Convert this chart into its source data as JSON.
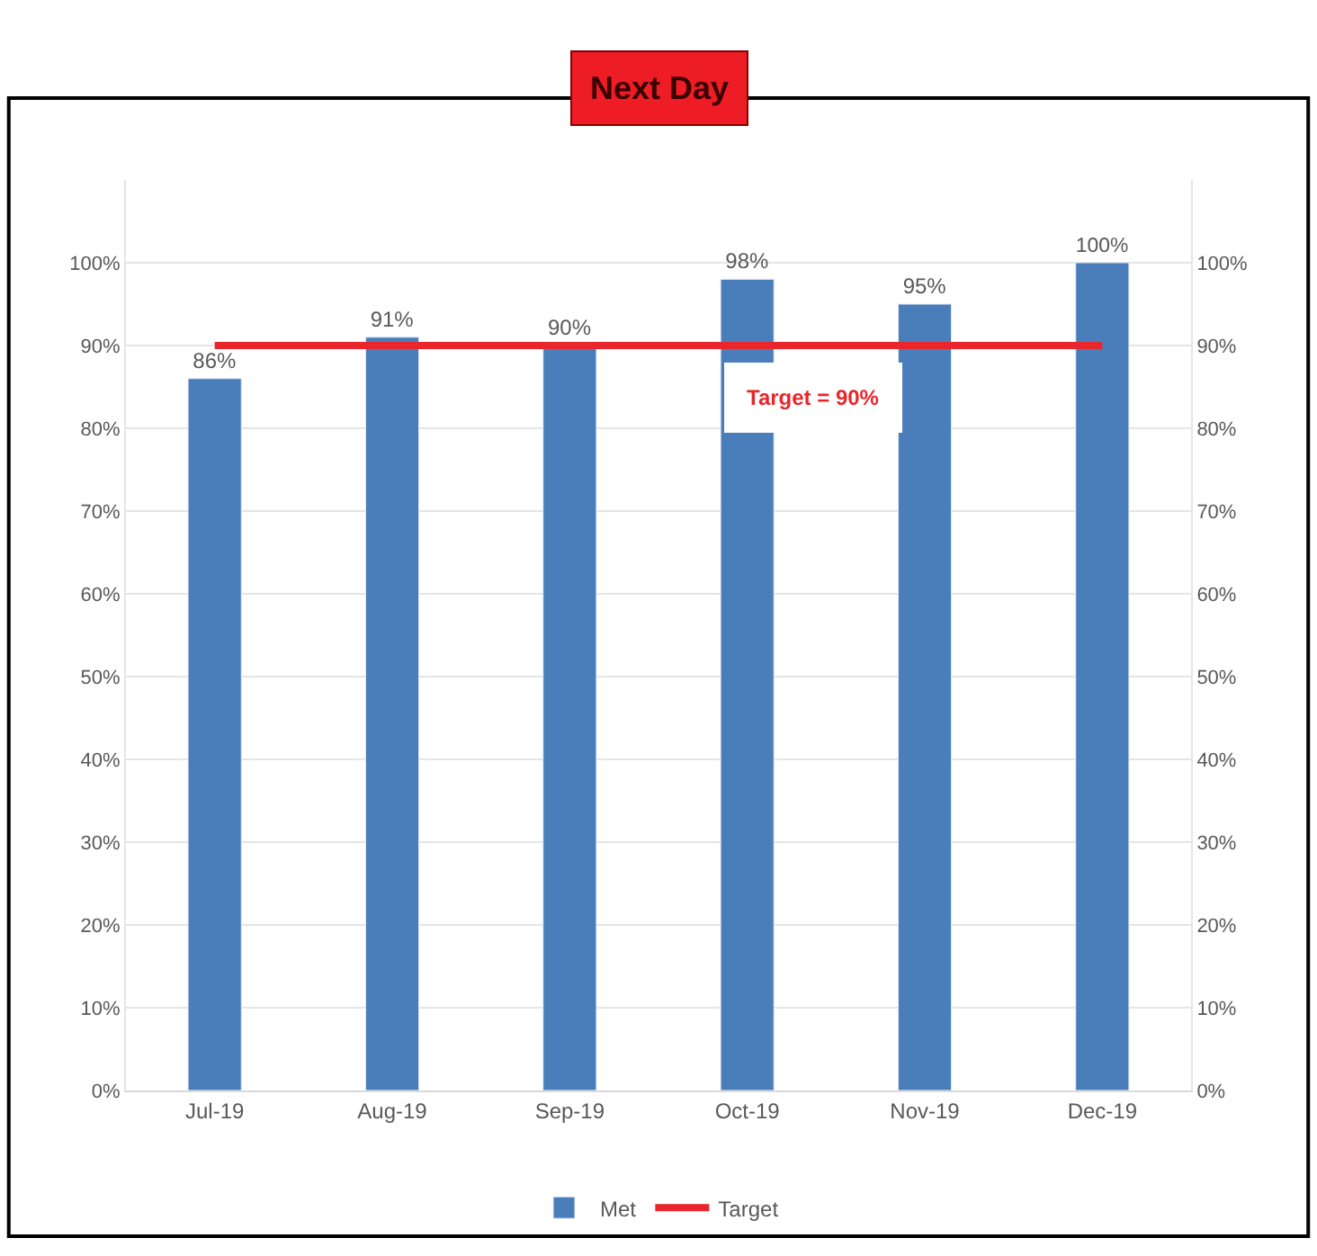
{
  "chart_data": {
    "type": "bar",
    "title": "Next Day",
    "categories": [
      "Jul-19",
      "Aug-19",
      "Sep-19",
      "Oct-19",
      "Nov-19",
      "Dec-19"
    ],
    "series": [
      {
        "name": "Met",
        "color": "#4a7ebb",
        "values": [
          86,
          91,
          90,
          98,
          95,
          100
        ],
        "value_labels": [
          "86%",
          "91%",
          "90%",
          "98%",
          "95%",
          "100%"
        ]
      },
      {
        "name": "Target",
        "type": "line",
        "color": "#e8262b",
        "values": [
          90,
          90,
          90,
          90,
          90,
          90
        ]
      }
    ],
    "ylim": [
      0,
      110
    ],
    "yticks": [
      {
        "value": 0,
        "label": "0%"
      },
      {
        "value": 10,
        "label": "10%"
      },
      {
        "value": 20,
        "label": "20%"
      },
      {
        "value": 30,
        "label": "30%"
      },
      {
        "value": 40,
        "label": "40%"
      },
      {
        "value": 50,
        "label": "50%"
      },
      {
        "value": 60,
        "label": "60%"
      },
      {
        "value": 70,
        "label": "70%"
      },
      {
        "value": 80,
        "label": "80%"
      },
      {
        "value": 90,
        "label": "90%"
      },
      {
        "value": 100,
        "label": "100%"
      }
    ],
    "y2lim": [
      0,
      110
    ],
    "y2ticks": [
      {
        "value": 0,
        "label": "0%"
      },
      {
        "value": 10,
        "label": "10%"
      },
      {
        "value": 20,
        "label": "20%"
      },
      {
        "value": 30,
        "label": "30%"
      },
      {
        "value": 40,
        "label": "40%"
      },
      {
        "value": 50,
        "label": "50%"
      },
      {
        "value": 60,
        "label": "60%"
      },
      {
        "value": 70,
        "label": "70%"
      },
      {
        "value": 80,
        "label": "80%"
      },
      {
        "value": 90,
        "label": "90%"
      },
      {
        "value": 100,
        "label": "100%"
      }
    ],
    "annotations": [
      "Target = 90%"
    ],
    "grid": "y",
    "legend": "bottom"
  }
}
